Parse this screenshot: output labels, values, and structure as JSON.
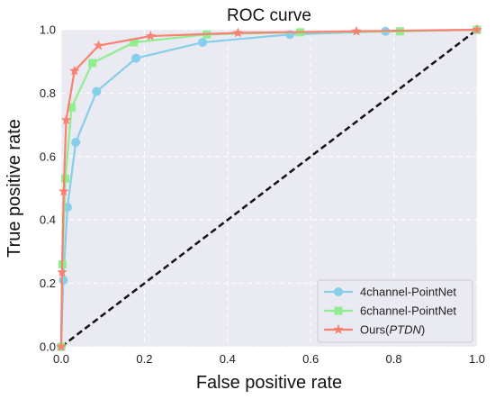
{
  "chart_data": {
    "type": "line",
    "title": "ROC curve",
    "xlabel": "False positive rate",
    "ylabel": "True positive rate",
    "xlim": [
      0,
      1
    ],
    "ylim": [
      0,
      1
    ],
    "xticks": [
      "0.0",
      "0.2",
      "0.4",
      "0.6",
      "0.8",
      "1.0"
    ],
    "yticks": [
      "0.0",
      "0.2",
      "0.4",
      "0.6",
      "0.8",
      "1.0"
    ],
    "grid": true,
    "legend_position": "bottom-right",
    "background": "#eaeaf2",
    "series": [
      {
        "name": "4channel-PointNet",
        "color": "#87ceeb",
        "marker": "circle",
        "x": [
          0.0,
          0.005,
          0.015,
          0.035,
          0.085,
          0.18,
          0.34,
          0.55,
          0.78,
          1.0
        ],
        "y": [
          0.0,
          0.21,
          0.44,
          0.645,
          0.805,
          0.91,
          0.96,
          0.985,
          0.995,
          1.0
        ]
      },
      {
        "name": "6channel-PointNet",
        "color": "#90ee90",
        "marker": "square",
        "x": [
          0.0,
          0.003,
          0.01,
          0.025,
          0.075,
          0.175,
          0.35,
          0.575,
          0.815,
          1.0
        ],
        "y": [
          0.0,
          0.26,
          0.53,
          0.755,
          0.895,
          0.96,
          0.985,
          0.992,
          0.995,
          1.0
        ]
      },
      {
        "name": "Ours(PTDN)",
        "name_plain": "Ours(",
        "name_italic": "PTDN",
        "name_close": ")",
        "color": "#fa8072",
        "marker": "star",
        "x": [
          0.0,
          0.002,
          0.006,
          0.012,
          0.032,
          0.09,
          0.215,
          0.425,
          0.71,
          1.0
        ],
        "y": [
          0.0,
          0.235,
          0.49,
          0.715,
          0.87,
          0.95,
          0.98,
          0.99,
          0.995,
          1.0
        ]
      }
    ],
    "reference_line": {
      "x": [
        0,
        1
      ],
      "y": [
        0,
        1
      ],
      "style": "dashed",
      "color": "#111111"
    }
  }
}
